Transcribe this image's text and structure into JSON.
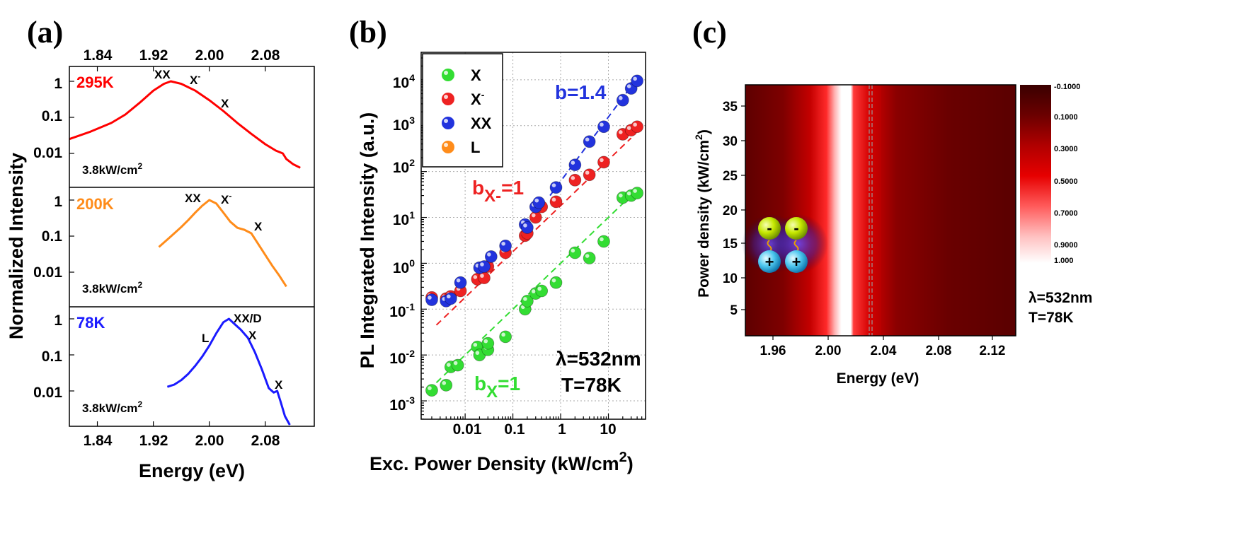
{
  "panel_labels": [
    "(a)",
    "(b)",
    "(c)"
  ],
  "chart_data": [
    {
      "type": "line",
      "panel": "(a)",
      "xlabel": "Energy (eV)",
      "ylabel": "Normalized Intensity",
      "xlim": [
        1.8,
        2.15
      ],
      "x_ticks": [
        "1.84",
        "1.92",
        "2.00",
        "2.08"
      ],
      "y_scale": "log",
      "y_ticks": [
        "1",
        "0.1",
        "0.01"
      ],
      "colors": {
        "295K": "#ff0000",
        "200K": "#ff8c1a",
        "78K": "#1a1aff"
      },
      "subplots": [
        {
          "temp": "295K",
          "power": "3.8kW/cm",
          "peaks": [
            {
              "label": "XX",
              "sup": ""
            },
            {
              "label": "X",
              "sup": "-"
            },
            {
              "label": "X",
              "sup": ""
            }
          ],
          "x": [
            1.8,
            1.83,
            1.86,
            1.88,
            1.9,
            1.92,
            1.935,
            1.945,
            1.96,
            1.98,
            2.0,
            2.02,
            2.04,
            2.06,
            2.08,
            2.095,
            2.105,
            2.11,
            2.12,
            2.13
          ],
          "y": [
            0.025,
            0.04,
            0.07,
            0.12,
            0.25,
            0.55,
            0.85,
            1.0,
            0.85,
            0.55,
            0.3,
            0.15,
            0.07,
            0.035,
            0.018,
            0.012,
            0.01,
            0.007,
            0.005,
            0.004
          ]
        },
        {
          "temp": "200K",
          "power": "3.8kW/cm",
          "peaks": [
            {
              "label": "XX",
              "sup": ""
            },
            {
              "label": "X",
              "sup": "-"
            },
            {
              "label": "X",
              "sup": ""
            }
          ],
          "x": [
            1.928,
            1.94,
            1.95,
            1.96,
            1.97,
            1.98,
            1.99,
            2.0,
            2.01,
            2.02,
            2.03,
            2.04,
            2.05,
            2.06,
            2.07,
            2.08,
            2.09,
            2.1,
            2.11
          ],
          "y": [
            0.05,
            0.08,
            0.12,
            0.18,
            0.28,
            0.45,
            0.7,
            1.0,
            0.8,
            0.45,
            0.25,
            0.17,
            0.15,
            0.12,
            0.06,
            0.03,
            0.015,
            0.008,
            0.004
          ]
        },
        {
          "temp": "78K",
          "power": "3.8kW/cm",
          "peaks": [
            {
              "label": "L",
              "sup": ""
            },
            {
              "label": "XX/D",
              "sup": ""
            },
            {
              "label": "X",
              "sup": ""
            },
            {
              "label": "X",
              "sup": ""
            }
          ],
          "x": [
            1.94,
            1.95,
            1.96,
            1.97,
            1.98,
            1.99,
            2.0,
            2.01,
            2.02,
            2.028,
            2.035,
            2.045,
            2.055,
            2.065,
            2.075,
            2.085,
            2.092,
            2.097,
            2.102,
            2.108,
            2.115
          ],
          "y": [
            0.013,
            0.015,
            0.02,
            0.03,
            0.05,
            0.09,
            0.18,
            0.4,
            0.8,
            1.0,
            0.75,
            0.5,
            0.3,
            0.12,
            0.04,
            0.012,
            0.009,
            0.01,
            0.005,
            0.002,
            0.001
          ]
        }
      ]
    },
    {
      "type": "scatter",
      "panel": "(b)",
      "xlabel": "Exc. Power Density (kW/cm",
      "ylabel": "PL Integrated Intensity (a.u.)",
      "x_scale": "log",
      "y_scale": "log",
      "x_ticks": [
        "0.01",
        "0.1",
        "1",
        "10"
      ],
      "y_ticks": [
        "4",
        "3",
        "2",
        "1",
        "0",
        "-1",
        "-2",
        "-3"
      ],
      "grid": true,
      "legend_position": "top-left",
      "series": [
        {
          "name": "X",
          "color": "#33dd33",
          "x": [
            0.002,
            0.004,
            0.005,
            0.007,
            0.018,
            0.02,
            0.03,
            0.03,
            0.07,
            0.18,
            0.2,
            0.3,
            0.4,
            0.8,
            2,
            4,
            8,
            20,
            30,
            40
          ],
          "y": [
            0.0017,
            0.0022,
            0.0055,
            0.006,
            0.015,
            0.01,
            0.013,
            0.018,
            0.025,
            0.1,
            0.15,
            0.22,
            0.25,
            0.38,
            1.7,
            1.3,
            3,
            27,
            30,
            34
          ]
        },
        {
          "name": "X",
          "sup": "-",
          "color": "#ee2222",
          "x": [
            0.002,
            0.004,
            0.005,
            0.008,
            0.018,
            0.025,
            0.03,
            0.07,
            0.18,
            0.2,
            0.3,
            0.4,
            0.8,
            2,
            4,
            8,
            20,
            30,
            40
          ],
          "y": [
            0.18,
            0.17,
            0.19,
            0.25,
            0.45,
            0.48,
            0.85,
            1.7,
            4,
            4.5,
            10,
            17,
            22,
            65,
            85,
            160,
            650,
            800,
            950
          ]
        },
        {
          "name": "XX",
          "color": "#2233dd",
          "x": [
            0.002,
            0.004,
            0.005,
            0.008,
            0.02,
            0.025,
            0.035,
            0.07,
            0.18,
            0.2,
            0.3,
            0.35,
            0.8,
            2,
            4,
            8,
            20,
            30,
            40
          ],
          "y": [
            0.16,
            0.15,
            0.17,
            0.38,
            0.8,
            0.85,
            1.4,
            2.4,
            7,
            6,
            17,
            21,
            45,
            140,
            450,
            950,
            3600,
            6500,
            9500
          ]
        },
        {
          "name": "L",
          "color": "#ff8c1a",
          "x": [],
          "y": []
        }
      ],
      "fits": [
        {
          "series": "X",
          "color": "#33dd33",
          "x": [
            0.0025,
            30
          ],
          "y": [
            0.0025,
            30
          ]
        },
        {
          "series": "X",
          "color": "#ee2222",
          "x": [
            0.0025,
            30
          ],
          "y": [
            0.045,
            540
          ]
        },
        {
          "series": "XX",
          "color": "#2233dd",
          "x": [
            0.6,
            40
          ],
          "y": [
            30,
            10800
          ]
        }
      ],
      "annotations": {
        "b_xx": "b=1.4",
        "b_xminus": "b",
        "b_xminus_sub": "X-",
        "b_xminus_val": "=1",
        "b_x": "b",
        "b_x_sub": "X",
        "b_x_val": "=1",
        "lambda": "λ=532nm",
        "temp": "T=78K"
      }
    },
    {
      "type": "heatmap",
      "panel": "(c)",
      "xlabel": "Energy (eV)",
      "ylabel": "Power density (kW/cm",
      "x_ticks": [
        "1.96",
        "2.00",
        "2.04",
        "2.08",
        "2.12"
      ],
      "y_ticks": [
        "35",
        "30",
        "25",
        "20",
        "15",
        "10",
        "5"
      ],
      "colorbar_ticks": [
        "-0.1000",
        "0.1000",
        "0.3000",
        "0.5000",
        "0.7000",
        "0.9000",
        "1.000"
      ],
      "colorbar_colors": [
        "#3a0000",
        "#6b0000",
        "#b00000",
        "#e60000",
        "#ff5a5a",
        "#ffc0c0",
        "#ffffff"
      ],
      "annotation": {
        "lambda": "λ=532nm",
        "temp": "T=78K"
      },
      "particle_signs": {
        "neg": "-",
        "pos": "+"
      }
    }
  ]
}
